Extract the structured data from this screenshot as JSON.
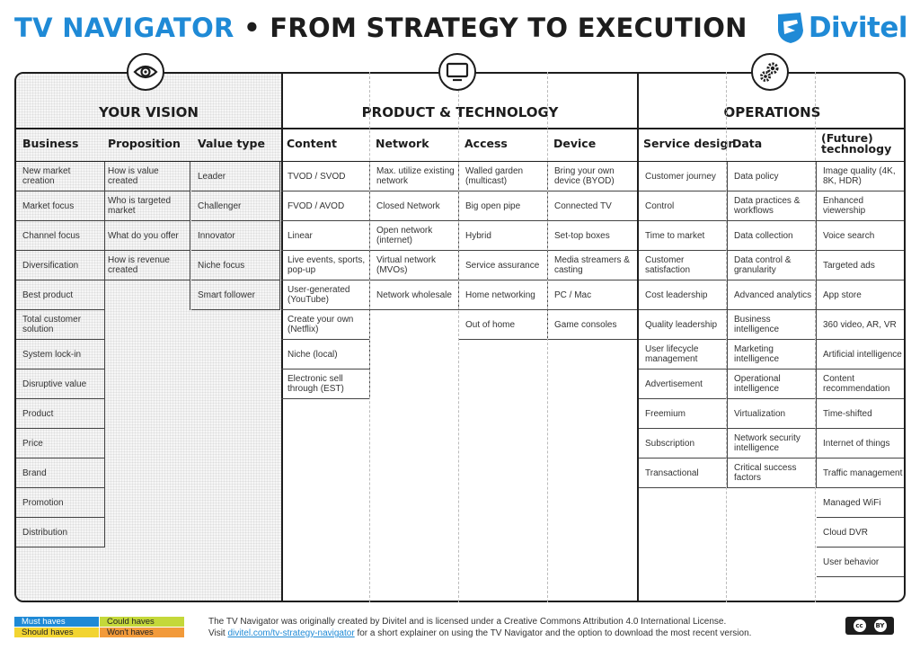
{
  "header": {
    "title_part1": "TV NAVIGATOR",
    "title_part2": " • FROM STRATEGY TO EXECUTION",
    "logo_text": "Divitel"
  },
  "sections": {
    "vision": "YOUR VISION",
    "product": "PRODUCT & TECHNOLOGY",
    "operations": "OPERATIONS"
  },
  "columns": {
    "business": {
      "header": "Business",
      "items": [
        "New market creation",
        "Market focus",
        "Channel focus",
        "Diversification",
        "Best product",
        "Total customer solution",
        "System lock-in",
        "Disruptive value",
        "Product",
        "Price",
        "Brand",
        "Promotion",
        "Distribution"
      ]
    },
    "proposition": {
      "header": "Proposition",
      "items": [
        "How is value created",
        "Who is targeted market",
        "What do you offer",
        "How is revenue created"
      ]
    },
    "value_type": {
      "header": "Value type",
      "items": [
        "Leader",
        "Challenger",
        "Innovator",
        "Niche focus",
        "Smart follower"
      ]
    },
    "content": {
      "header": "Content",
      "items": [
        "TVOD / SVOD",
        "FVOD / AVOD",
        "Linear",
        "Live events, sports, pop-up",
        "User-generated (YouTube)",
        "Create your own (Netflix)",
        "Niche (local)",
        "Electronic sell through (EST)"
      ]
    },
    "network": {
      "header": "Network",
      "items": [
        "Max. utilize existing network",
        "Closed Network",
        "Open network (internet)",
        "Virtual network (MVOs)",
        "Network wholesale"
      ]
    },
    "access": {
      "header": "Access",
      "items": [
        "Walled garden (multicast)",
        "Big open pipe",
        "Hybrid",
        "Service assurance",
        "Home networking",
        "Out of home"
      ]
    },
    "device": {
      "header": "Device",
      "items": [
        "Bring your own device (BYOD)",
        "Connected TV",
        "Set-top boxes",
        "Media streamers & casting",
        "PC / Mac",
        "Game consoles"
      ]
    },
    "service_design": {
      "header": "Service design",
      "items": [
        "Customer journey",
        "Control",
        "Time to market",
        "Customer satisfaction",
        "Cost leadership",
        "Quality leadership",
        "User lifecycle management",
        "Advertisement",
        "Freemium",
        "Subscription",
        "Transactional"
      ]
    },
    "data": {
      "header": "Data",
      "items": [
        "Data policy",
        "Data practices & workflows",
        "Data collection",
        "Data control & granularity",
        "Advanced analytics",
        "Business intelligence",
        "Marketing intelligence",
        "Operational intelligence",
        "Virtualization",
        "Network security intelligence",
        "Critical success factors"
      ]
    },
    "future_technology": {
      "header": "(Future) technology",
      "items": [
        "Image quality (4K, 8K, HDR)",
        "Enhanced viewership",
        "Voice search",
        "Targeted ads",
        "App store",
        "360 video, AR, VR",
        "Artificial intelligence",
        "Content recommendation",
        "Time-shifted",
        "Internet of things",
        "Traffic management",
        "Managed WiFi",
        "Cloud DVR",
        "User behavior"
      ]
    }
  },
  "legend": [
    {
      "label": "Must haves",
      "color": "#1f8ad6"
    },
    {
      "label": "Could haves",
      "color": "#c4d83a"
    },
    {
      "label": "Should haves",
      "color": "#f2d431"
    },
    {
      "label": "Won't haves",
      "color": "#f29a3a"
    }
  ],
  "footer": {
    "line1": "The TV Navigator was originally created by Divitel and is licensed under a Creative Commons Attribution 4.0 International License.",
    "line2_pre": "Visit ",
    "line2_link": "divitel.com/tv-strategy-navigator",
    "line2_post": " for a short explainer on using the TV Navigator and the option to download the most recent version.",
    "cc_label": "cc",
    "by_label": "BY"
  }
}
